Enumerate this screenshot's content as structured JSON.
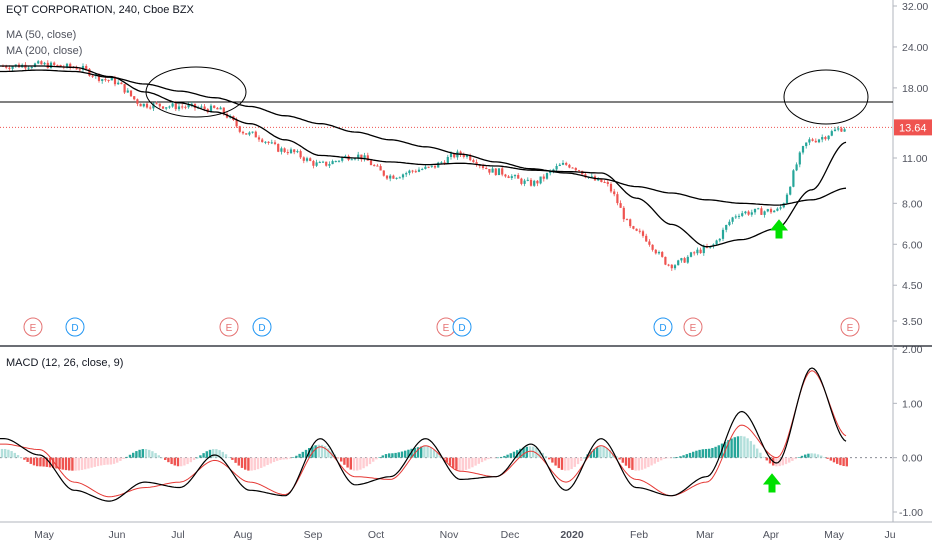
{
  "header": {
    "symbol_line": "EQT CORPORATION, 240, Cboe BZX",
    "ma50_label": "MA (50, close)",
    "ma200_label": "MA (200, close)",
    "macd_label": "MACD (12, 26, close, 9)"
  },
  "price_axis": {
    "ticks": [
      "32.00",
      "24.00",
      "18.00",
      "13.64",
      "11.00",
      "8.00",
      "6.00",
      "4.50",
      "3.50"
    ],
    "last_price": "13.64",
    "scale": "log"
  },
  "macd_axis": {
    "ticks": [
      "2.00",
      "1.00",
      "0.00",
      "-1.00"
    ]
  },
  "time_axis": {
    "ticks": [
      "May",
      "Jun",
      "Jul",
      "Aug",
      "Sep",
      "Oct",
      "Nov",
      "Dec",
      "2020",
      "Feb",
      "Mar",
      "Apr",
      "May",
      "Ju"
    ]
  },
  "events": [
    {
      "type": "E",
      "label": "E"
    },
    {
      "type": "D",
      "label": "D"
    },
    {
      "type": "E",
      "label": "E"
    },
    {
      "type": "D",
      "label": "D"
    },
    {
      "type": "E",
      "label": "E"
    },
    {
      "type": "D",
      "label": "D"
    },
    {
      "type": "D",
      "label": "D"
    },
    {
      "type": "E",
      "label": "E"
    },
    {
      "type": "E",
      "label": "E"
    }
  ],
  "colors": {
    "up": "#26a69a",
    "down": "#ef5350",
    "ma": "#000000",
    "signal": "#e53935",
    "resistance": "#000000",
    "last_price_tag": "#ef5350",
    "arrow": "#00e000",
    "earnings": "#e57373",
    "dividend": "#2196f3"
  },
  "annotations": {
    "resistance_level": 16.3,
    "circles": 2,
    "arrows": 2
  },
  "chart_data": [
    {
      "type": "line",
      "title": "EQT CORPORATION, 240, Cboe BZX",
      "y_scale": "log",
      "ylim": [
        3.2,
        34
      ],
      "x": [
        "May",
        "May",
        "Jun",
        "Jun",
        "Jul",
        "Jul",
        "Aug",
        "Aug",
        "Sep",
        "Sep",
        "Oct",
        "Oct",
        "Nov",
        "Nov",
        "Dec",
        "Dec",
        "2020",
        "2020",
        "Feb",
        "Feb",
        "Mar",
        "Mar",
        "Apr",
        "Apr",
        "May"
      ],
      "series": [
        {
          "name": "Close",
          "values": [
            21.0,
            21.2,
            20.8,
            19.0,
            16.0,
            15.8,
            15.5,
            13.0,
            11.6,
            10.5,
            11.2,
            9.7,
            10.2,
            11.3,
            10.0,
            9.2,
            10.5,
            9.3,
            6.5,
            5.2,
            5.8,
            7.5,
            7.6,
            12.5,
            13.64
          ]
        },
        {
          "name": "MA (50, close)",
          "values": [
            21.0,
            21.0,
            20.8,
            19.5,
            17.5,
            16.2,
            15.2,
            14.0,
            12.5,
            11.2,
            11.0,
            10.7,
            10.5,
            10.6,
            10.4,
            10.1,
            10.0,
            9.9,
            8.3,
            6.9,
            5.9,
            6.2,
            6.7,
            8.8,
            12.3
          ]
        },
        {
          "name": "MA (200, close)",
          "values": [
            20.2,
            20.4,
            20.2,
            19.4,
            18.5,
            17.6,
            16.8,
            15.8,
            14.8,
            14.0,
            13.2,
            12.5,
            11.9,
            11.3,
            10.7,
            10.2,
            9.9,
            9.5,
            9.0,
            8.6,
            8.2,
            8.0,
            7.9,
            8.2,
            8.9
          ]
        }
      ]
    },
    {
      "type": "line",
      "title": "MACD (12, 26, close, 9)",
      "ylim": [
        -1.15,
        2.0
      ],
      "x": [
        "May",
        "May",
        "Jun",
        "Jun",
        "Jul",
        "Jul",
        "Aug",
        "Aug",
        "Sep",
        "Sep",
        "Oct",
        "Oct",
        "Nov",
        "Nov",
        "Dec",
        "Dec",
        "2020",
        "2020",
        "Feb",
        "Feb",
        "Mar",
        "Mar",
        "Apr",
        "Apr",
        "May"
      ],
      "series": [
        {
          "name": "MACD",
          "values": [
            0.35,
            0.05,
            -0.6,
            -0.8,
            -0.45,
            -0.55,
            0.05,
            -0.6,
            -0.7,
            0.35,
            -0.5,
            -0.35,
            0.35,
            -0.4,
            -0.35,
            0.25,
            -0.6,
            0.35,
            -0.55,
            -0.7,
            -0.35,
            0.85,
            -0.1,
            1.65,
            0.3
          ]
        },
        {
          "name": "Signal",
          "values": [
            0.25,
            0.15,
            -0.45,
            -0.72,
            -0.55,
            -0.45,
            -0.05,
            -0.45,
            -0.68,
            0.2,
            -0.35,
            -0.4,
            0.22,
            -0.25,
            -0.35,
            0.12,
            -0.45,
            0.22,
            -0.4,
            -0.7,
            -0.45,
            0.6,
            0.0,
            1.6,
            0.4
          ]
        }
      ]
    }
  ]
}
